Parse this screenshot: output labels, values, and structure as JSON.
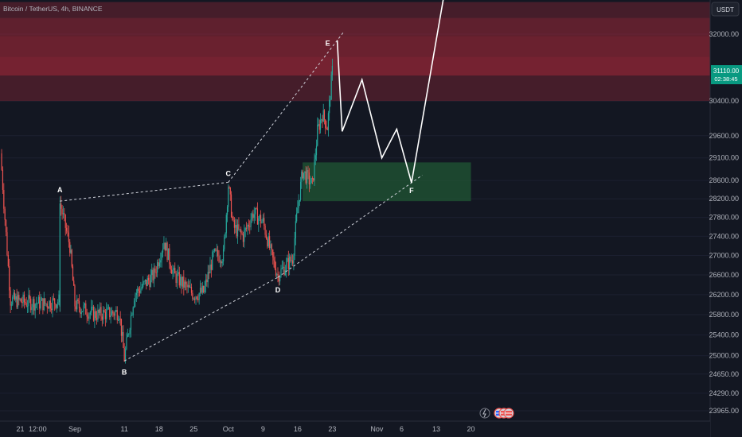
{
  "header": {
    "symbol": "Bitcoin / TetherUS, 4h, BINANCE"
  },
  "currency_button": "USDT",
  "price_badge": {
    "price": "31110.00",
    "countdown": "02:38:45",
    "color": "#089981"
  },
  "colors": {
    "up": "#26a69a",
    "down": "#ef5350",
    "resistance_zone": "#b02a3a",
    "support_zone": "#1f5233",
    "background": "#131722"
  },
  "icons": [
    "lightning-icon",
    "flag-icon",
    "flag-icon",
    "flag-icon"
  ],
  "chart_data": {
    "type": "candlestick",
    "y_scale": "log",
    "ylim": [
      23700,
      33300
    ],
    "y_ticks": [
      "32000.00",
      "30400.00",
      "29600.00",
      "29100.00",
      "28600.00",
      "28200.00",
      "27800.00",
      "27400.00",
      "27000.00",
      "26600.00",
      "26200.00",
      "25800.00",
      "25400.00",
      "25000.00",
      "24650.00",
      "24290.00",
      "23965.00"
    ],
    "x_ticks": [
      "21",
      "12:00",
      "Sep",
      "11",
      "18",
      "25",
      "Oct",
      "9",
      "16",
      "23",
      "Nov",
      "6",
      "13",
      "20"
    ],
    "price_path": [
      {
        "date": "2023-08-17",
        "price": 29200
      },
      {
        "date": "2023-08-19",
        "price": 26100
      },
      {
        "date": "2023-08-22",
        "price": 26050
      },
      {
        "date": "2023-08-26",
        "price": 26020
      },
      {
        "date": "2023-08-29",
        "price": 26080
      },
      {
        "date": "2023-08-29",
        "price": 28100
      },
      {
        "date": "2023-08-31",
        "price": 27200
      },
      {
        "date": "2023-09-01",
        "price": 26000
      },
      {
        "date": "2023-09-05",
        "price": 25800
      },
      {
        "date": "2023-09-10",
        "price": 25850
      },
      {
        "date": "2023-09-11",
        "price": 24950
      },
      {
        "date": "2023-09-13",
        "price": 26200
      },
      {
        "date": "2023-09-17",
        "price": 26600
      },
      {
        "date": "2023-09-19",
        "price": 27300
      },
      {
        "date": "2023-09-21",
        "price": 26600
      },
      {
        "date": "2023-09-25",
        "price": 26200
      },
      {
        "date": "2023-09-27",
        "price": 26250
      },
      {
        "date": "2023-09-29",
        "price": 27000
      },
      {
        "date": "2023-10-01",
        "price": 27000
      },
      {
        "date": "2023-10-02",
        "price": 28500
      },
      {
        "date": "2023-10-03",
        "price": 27600
      },
      {
        "date": "2023-10-05",
        "price": 27400
      },
      {
        "date": "2023-10-07",
        "price": 27900
      },
      {
        "date": "2023-10-09",
        "price": 27700
      },
      {
        "date": "2023-10-11",
        "price": 26900
      },
      {
        "date": "2023-10-12",
        "price": 26600
      },
      {
        "date": "2023-10-15",
        "price": 26950
      },
      {
        "date": "2023-10-16",
        "price": 28000
      },
      {
        "date": "2023-10-17",
        "price": 28800
      },
      {
        "date": "2023-10-19",
        "price": 28500
      },
      {
        "date": "2023-10-20",
        "price": 29700
      },
      {
        "date": "2023-10-21",
        "price": 30100
      },
      {
        "date": "2023-10-22",
        "price": 29800
      },
      {
        "date": "2023-10-23",
        "price": 31100
      }
    ],
    "waves": [
      {
        "label": "A",
        "date": "2023-08-29",
        "price": 28150
      },
      {
        "label": "B",
        "date": "2023-09-11",
        "price": 24900
      },
      {
        "label": "C",
        "date": "2023-10-02",
        "price": 28560
      },
      {
        "label": "D",
        "date": "2023-10-12",
        "price": 26550
      },
      {
        "label": "E",
        "date": "2023-10-24",
        "price": 31850
      },
      {
        "label": "F",
        "date": "2023-11-08",
        "price": 28550
      }
    ],
    "zones": [
      {
        "name": "resistance",
        "from": 30400,
        "to": 32800
      },
      {
        "name": "support",
        "from": 28150,
        "to": 29000,
        "start_date": "2023-10-17",
        "end_date": "2023-11-20"
      }
    ],
    "projection": [
      {
        "date": "2023-10-24",
        "price": 31850
      },
      {
        "date": "2023-10-25",
        "price": 29700
      },
      {
        "date": "2023-10-29",
        "price": 30900
      },
      {
        "date": "2023-11-02",
        "price": 29100
      },
      {
        "date": "2023-11-05",
        "price": 29750
      },
      {
        "date": "2023-11-08",
        "price": 28550
      },
      {
        "date": "2023-11-15",
        "price": 33300
      }
    ]
  }
}
